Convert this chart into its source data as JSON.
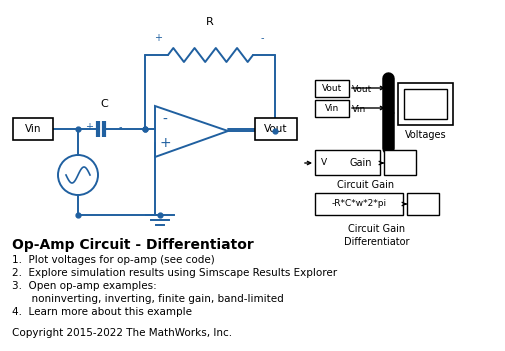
{
  "title": "Op-Amp Circuit - Differentiator",
  "bullet1": "1.  Plot voltages for op-amp (see code)",
  "bullet2": "2.  Explore simulation results using Simscape Results Explorer",
  "bullet3": "3.  Open op-amp examples:",
  "bullet3b": "      noninverting, inverting, finite gain, band-limited",
  "bullet4": "4.  Learn more about this example",
  "copyright": "Copyright 2015-2022 The MathWorks, Inc.",
  "circuit_color": "#2060a0",
  "bg_color": "#ffffff",
  "text_color": "#000000"
}
